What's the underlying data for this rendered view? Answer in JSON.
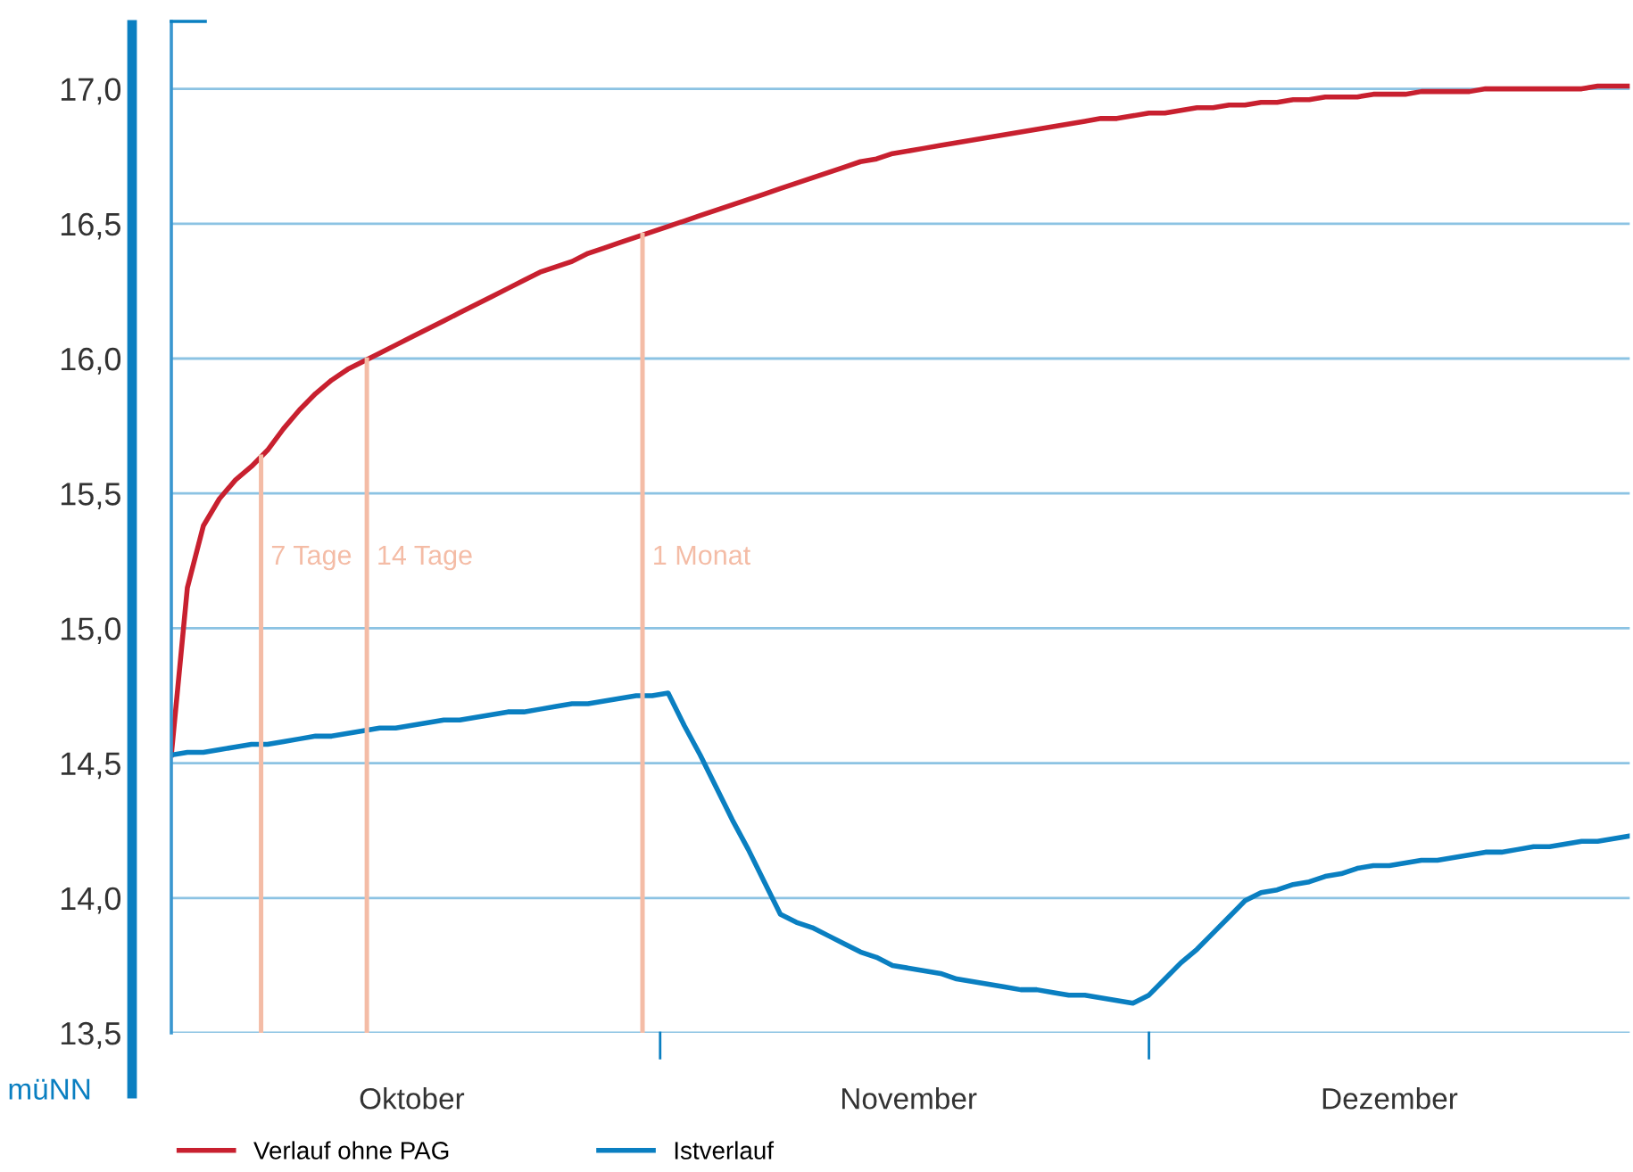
{
  "chart_data": {
    "type": "line",
    "ylabel": "müNN",
    "categories": [
      null,
      null,
      null,
      null,
      null,
      null,
      null,
      null,
      null,
      null,
      null,
      null,
      null,
      null,
      null,
      "Oktober",
      null,
      null,
      null,
      null,
      null,
      null,
      null,
      null,
      null,
      null,
      null,
      null,
      null,
      null,
      null,
      null,
      null,
      null,
      null,
      null,
      null,
      null,
      null,
      null,
      null,
      null,
      null,
      null,
      null,
      null,
      "November",
      null,
      null,
      null,
      null,
      null,
      null,
      null,
      null,
      null,
      null,
      null,
      null,
      null,
      null,
      null,
      null,
      null,
      null,
      null,
      null,
      null,
      null,
      null,
      null,
      null,
      null,
      null,
      null,
      null,
      "Dezember",
      null,
      null,
      null,
      null,
      null,
      null,
      null,
      null,
      null,
      null,
      null,
      null,
      null,
      null,
      null
    ],
    "ylim": [
      13.5,
      17.25
    ],
    "yticks": [
      {
        "value": 13.5,
        "label": "13,5"
      },
      {
        "value": 14,
        "label": "14,0"
      },
      {
        "value": 14.5,
        "label": "14,5"
      },
      {
        "value": 15,
        "label": "15,0"
      },
      {
        "value": 15.5,
        "label": "15,5"
      },
      {
        "value": 16,
        "label": "16,0"
      },
      {
        "value": 16.5,
        "label": "16,5"
      },
      {
        "value": 17,
        "label": "17,0"
      }
    ],
    "grid": "y",
    "legend": "bottom left",
    "marker": "none",
    "line_style": "solid",
    "series": [
      {
        "name": "Verlauf ohne PAG",
        "color": "#c8202f",
        "values": [
          14.53,
          15.15,
          15.38,
          15.48,
          15.55,
          15.6,
          15.66,
          15.74,
          15.81,
          15.87,
          15.92,
          15.96,
          15.99,
          16.02,
          16.05,
          16.08,
          16.11,
          16.14,
          16.17,
          16.2,
          16.23,
          16.26,
          16.29,
          16.32,
          16.34,
          16.36,
          16.39,
          16.41,
          16.43,
          16.45,
          16.47,
          16.49,
          16.51,
          16.53,
          16.55,
          16.57,
          16.59,
          16.61,
          16.63,
          16.65,
          16.67,
          16.69,
          16.71,
          16.73,
          16.74,
          16.76,
          16.77,
          16.78,
          16.79,
          16.8,
          16.81,
          16.82,
          16.83,
          16.84,
          16.85,
          16.86,
          16.87,
          16.88,
          16.89,
          16.89,
          16.9,
          16.91,
          16.91,
          16.92,
          16.93,
          16.93,
          16.94,
          16.94,
          16.95,
          16.95,
          16.96,
          16.96,
          16.97,
          16.97,
          16.97,
          16.98,
          16.98,
          16.98,
          16.99,
          16.99,
          16.99,
          16.99,
          17.0,
          17.0,
          17.0,
          17.0,
          17.0,
          17.0,
          17.0,
          17.01,
          17.01,
          17.01
        ]
      },
      {
        "name": "Istverlauf",
        "color": "#0a7fc1",
        "values": [
          14.53,
          14.54,
          14.54,
          14.55,
          14.56,
          14.57,
          14.57,
          14.58,
          14.59,
          14.6,
          14.6,
          14.61,
          14.62,
          14.63,
          14.63,
          14.64,
          14.65,
          14.66,
          14.66,
          14.67,
          14.68,
          14.69,
          14.69,
          14.7,
          14.71,
          14.72,
          14.72,
          14.73,
          14.74,
          14.75,
          14.75,
          14.76,
          14.64,
          14.53,
          14.41,
          14.29,
          14.18,
          14.06,
          13.94,
          13.91,
          13.89,
          13.86,
          13.83,
          13.8,
          13.78,
          13.75,
          13.74,
          13.73,
          13.72,
          13.7,
          13.69,
          13.68,
          13.67,
          13.66,
          13.66,
          13.65,
          13.64,
          13.64,
          13.63,
          13.62,
          13.61,
          13.64,
          13.7,
          13.76,
          13.81,
          13.87,
          13.93,
          13.99,
          14.02,
          14.03,
          14.05,
          14.06,
          14.08,
          14.09,
          14.11,
          14.12,
          14.12,
          14.13,
          14.14,
          14.14,
          14.15,
          14.16,
          14.17,
          14.17,
          14.18,
          14.19,
          14.19,
          14.2,
          14.21,
          14.21,
          14.22,
          14.23
        ]
      }
    ],
    "annotations": [
      "7 Tage",
      "14 Tage",
      "1 Monat"
    ]
  }
}
